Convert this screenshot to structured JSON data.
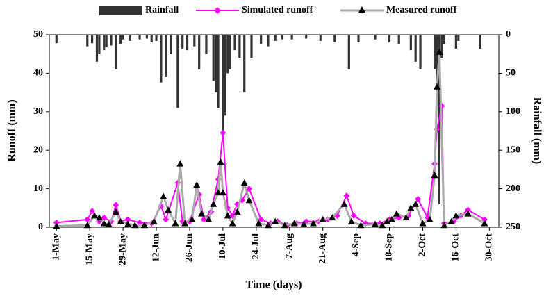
{
  "chart_data": {
    "type": "rain-runoff",
    "xlabel": "Time (days)",
    "ylabel": "Runoff (mm)",
    "y2label": "Rainfall (mm)",
    "xlim": [
      -3,
      186
    ],
    "xticks": [
      {
        "value": 0,
        "label": "1-May"
      },
      {
        "value": 14,
        "label": "15-May"
      },
      {
        "value": 28,
        "label": "29-May"
      },
      {
        "value": 42,
        "label": "12-Jun"
      },
      {
        "value": 56,
        "label": "26-Jun"
      },
      {
        "value": 70,
        "label": "10-Jul"
      },
      {
        "value": 84,
        "label": "24-Jul"
      },
      {
        "value": 98,
        "label": "7-Aug"
      },
      {
        "value": 112,
        "label": "21-Aug"
      },
      {
        "value": 126,
        "label": "4-Sep"
      },
      {
        "value": 140,
        "label": "18-Sep"
      },
      {
        "value": 154,
        "label": "2-Oct"
      },
      {
        "value": 168,
        "label": "16-Oct"
      },
      {
        "value": 182,
        "label": "30-Oct"
      }
    ],
    "ylim": [
      0,
      50
    ],
    "yticks": [
      0,
      10,
      20,
      30,
      40,
      50
    ],
    "y2lim": [
      250,
      0
    ],
    "y2ticks": [
      0,
      50,
      100,
      150,
      200,
      250
    ],
    "series": [
      {
        "name": "Rainfall",
        "kind": "bar",
        "axis": "y2",
        "color": "#333333",
        "x": [
          0,
          13,
          15,
          17,
          18,
          20,
          21,
          23,
          25,
          27,
          28,
          31,
          35,
          38,
          40,
          42,
          44,
          46,
          48,
          51,
          53,
          55,
          58,
          60,
          63,
          66,
          67,
          68,
          70,
          71,
          72,
          73,
          75,
          77,
          79,
          82,
          86,
          89,
          92,
          95,
          99,
          105,
          111,
          117,
          123,
          127,
          134,
          140,
          144,
          149,
          151,
          153,
          159,
          160,
          161,
          162,
          163,
          168,
          169,
          178
        ],
        "values": [
          11,
          15,
          11,
          35,
          25,
          20,
          16,
          14,
          45,
          12,
          6,
          8,
          6,
          5,
          10,
          8,
          62,
          55,
          25,
          95,
          18,
          20,
          15,
          45,
          25,
          60,
          75,
          95,
          125,
          105,
          50,
          45,
          20,
          30,
          75,
          30,
          12,
          15,
          8,
          6,
          6,
          5,
          8,
          10,
          45,
          10,
          6,
          10,
          12,
          20,
          35,
          45,
          45,
          75,
          220,
          30,
          12,
          18,
          8,
          18
        ]
      },
      {
        "name": "Simulated runoff",
        "kind": "line",
        "marker": "diamond",
        "color": "#ff00ff",
        "x": [
          0,
          13,
          15,
          18,
          20,
          23,
          25,
          27,
          30,
          35,
          40,
          44,
          46,
          51,
          53,
          56,
          60,
          62,
          65,
          68,
          70,
          72,
          74,
          76,
          78,
          81,
          86,
          90,
          93,
          97,
          101,
          105,
          110,
          114,
          118,
          122,
          125,
          130,
          136,
          140,
          144,
          148,
          152,
          156,
          159,
          160,
          162,
          163,
          167,
          170,
          173,
          180
        ],
        "values": [
          1.2,
          2,
          4.2,
          1.5,
          2.5,
          1.5,
          5.8,
          1.5,
          2,
          1.2,
          1,
          5.5,
          2,
          11.5,
          1.5,
          1.5,
          8.5,
          2,
          4,
          12.5,
          24.5,
          5,
          3,
          6,
          7,
          10,
          2,
          1,
          1.5,
          0.5,
          1,
          1.5,
          1.5,
          2,
          3,
          8.2,
          3,
          1,
          1,
          2,
          2.5,
          3,
          7.3,
          2.5,
          16.5,
          25.5,
          31.5,
          1,
          1.5,
          3,
          4.5,
          2
        ]
      },
      {
        "name": "Measured runoff",
        "kind": "line",
        "marker": "triangle",
        "color": "#aaaaaa",
        "x": [
          0,
          13,
          16,
          18,
          20,
          22,
          25,
          27,
          30,
          33,
          37,
          41,
          45,
          47,
          50,
          52,
          54,
          57,
          59,
          61,
          64,
          66,
          68,
          69,
          70,
          72,
          74,
          76,
          79,
          81,
          85,
          89,
          92,
          96,
          100,
          104,
          108,
          112,
          116,
          121,
          124,
          128,
          134,
          137,
          139,
          141,
          143,
          147,
          149,
          151,
          154,
          157,
          159,
          160,
          161,
          163,
          166,
          168,
          173,
          180
        ],
        "values": [
          0.3,
          0.5,
          3,
          2.5,
          1,
          0.8,
          4,
          1.5,
          0.8,
          0.5,
          0.5,
          1.5,
          8,
          4.5,
          1,
          16.5,
          1,
          2,
          11,
          3.5,
          2,
          6,
          9,
          17,
          9,
          3,
          1,
          4,
          11.5,
          7,
          1,
          0.5,
          1.5,
          0.5,
          1,
          0.8,
          1,
          2,
          2.5,
          6,
          1.5,
          0.5,
          0.8,
          0.5,
          1.5,
          2,
          3.5,
          2.5,
          5,
          6,
          1,
          2,
          13.5,
          36.5,
          45.5,
          0.5,
          1.5,
          3,
          3.5,
          1
        ]
      }
    ]
  }
}
